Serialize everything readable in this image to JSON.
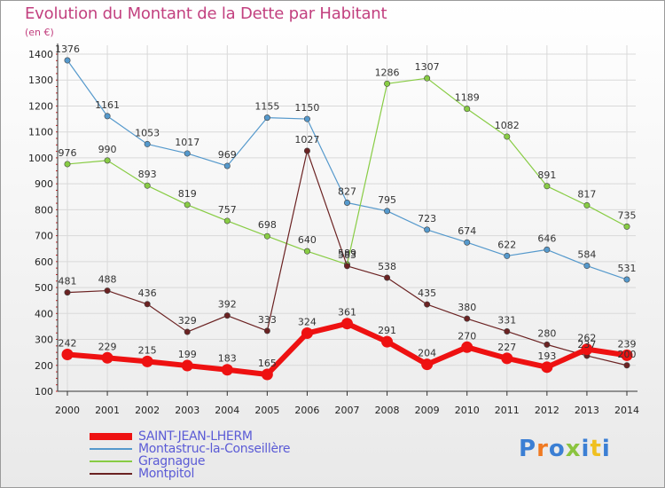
{
  "title": "Evolution du Montant de la Dette par Habitant",
  "subtitle": "(en €)",
  "logo_text": "Proxiti",
  "chart_data": {
    "type": "line",
    "title": "Evolution du Montant de la Dette par Habitant",
    "subtitle": "(en €)",
    "x": [
      2000,
      2001,
      2002,
      2003,
      2004,
      2005,
      2006,
      2007,
      2008,
      2009,
      2010,
      2011,
      2012,
      2013,
      2014
    ],
    "ylim": [
      100,
      1400
    ],
    "yticks": [
      100,
      200,
      300,
      400,
      500,
      600,
      700,
      800,
      900,
      1000,
      1100,
      1200,
      1300,
      1400
    ],
    "grid": true,
    "legend_position": "bottom-left",
    "series": [
      {
        "name": "SAINT-JEAN-LHERM",
        "color": "#ee1111",
        "values": [
          242,
          229,
          215,
          199,
          183,
          165,
          324,
          361,
          291,
          204,
          270,
          227,
          193,
          262,
          239
        ]
      },
      {
        "name": "Montastruc-la-Conseillère",
        "color": "#5599cc",
        "values": [
          1376,
          1161,
          1053,
          1017,
          969,
          1155,
          1150,
          827,
          795,
          723,
          674,
          622,
          646,
          584,
          531
        ]
      },
      {
        "name": "Gragnague",
        "color": "#88cc44",
        "values": [
          976,
          990,
          893,
          819,
          757,
          698,
          640,
          589,
          1286,
          1307,
          1189,
          1082,
          891,
          817,
          735
        ]
      },
      {
        "name": "Montpitol",
        "color": "#6b2222",
        "values": [
          481,
          488,
          436,
          329,
          392,
          333,
          1027,
          583,
          538,
          435,
          380,
          331,
          280,
          237,
          200
        ]
      }
    ]
  }
}
